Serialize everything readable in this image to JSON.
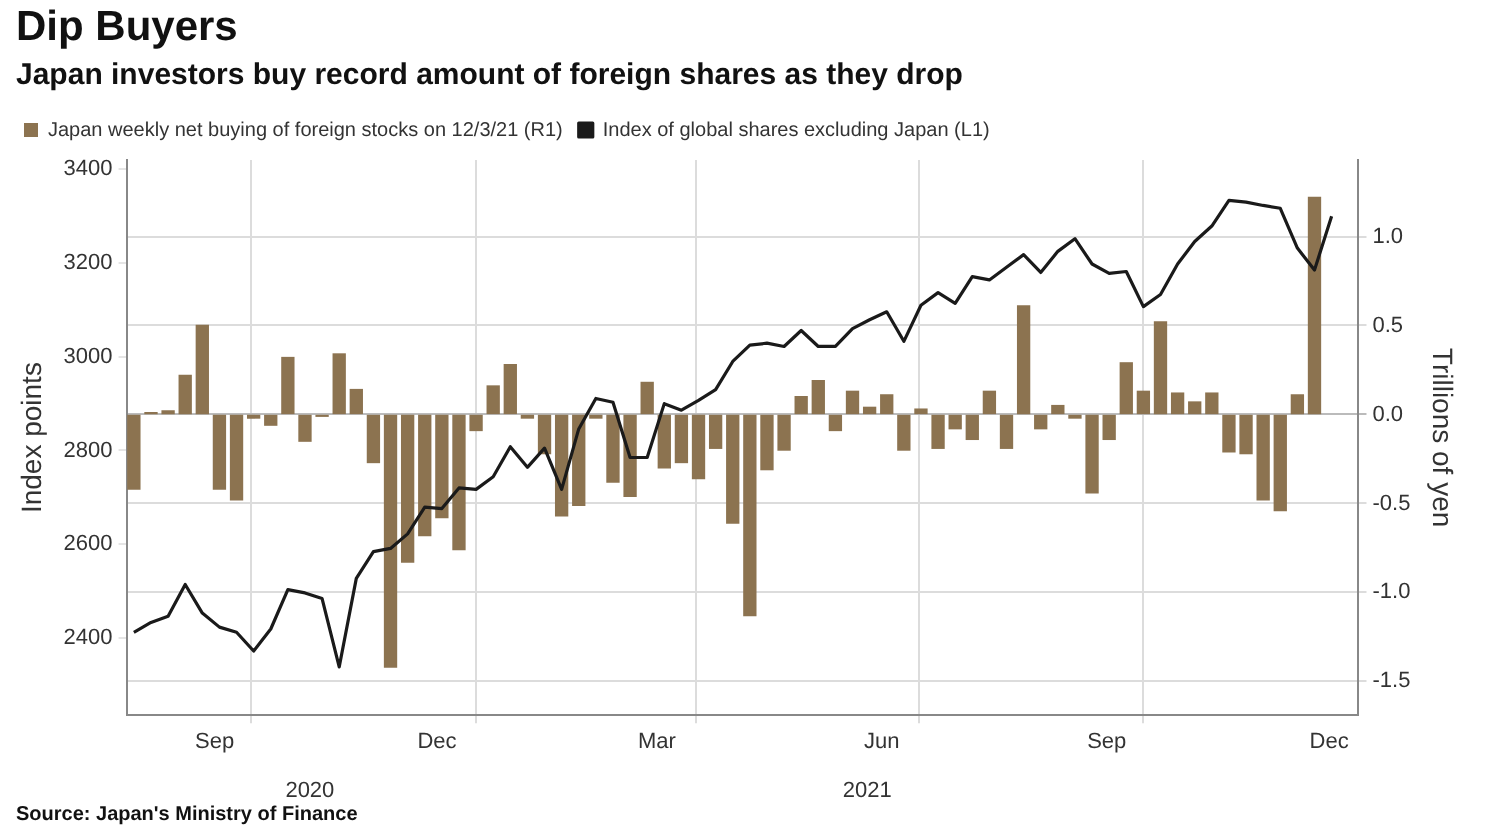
{
  "chart_data": {
    "type": "bar",
    "title": "Dip Buyers",
    "subtitle": "Japan investors buy record amount of foreign shares as they drop",
    "ylabel": "Index points",
    "y2label": "Trillions of yen",
    "annotations": [
      "Source: Japan's Ministry of Finance"
    ],
    "x": [
      "2020-08-14",
      "2020-08-21",
      "2020-08-28",
      "2020-09-04",
      "2020-09-11",
      "2020-09-18",
      "2020-09-25",
      "2020-10-02",
      "2020-10-09",
      "2020-10-16",
      "2020-10-23",
      "2020-10-30",
      "2020-11-06",
      "2020-11-13",
      "2020-11-20",
      "2020-11-27",
      "2020-12-04",
      "2020-12-11",
      "2020-12-18",
      "2020-12-25",
      "2021-01-01",
      "2021-01-08",
      "2021-01-15",
      "2021-01-22",
      "2021-01-29",
      "2021-02-05",
      "2021-02-12",
      "2021-02-19",
      "2021-02-26",
      "2021-03-05",
      "2021-03-12",
      "2021-03-19",
      "2021-03-26",
      "2021-04-02",
      "2021-04-09",
      "2021-04-16",
      "2021-04-23",
      "2021-04-30",
      "2021-05-07",
      "2021-05-14",
      "2021-05-21",
      "2021-05-28",
      "2021-06-04",
      "2021-06-11",
      "2021-06-18",
      "2021-06-25",
      "2021-07-02",
      "2021-07-09",
      "2021-07-16",
      "2021-07-23",
      "2021-07-30",
      "2021-08-06",
      "2021-08-13",
      "2021-08-20",
      "2021-08-27",
      "2021-09-03",
      "2021-09-10",
      "2021-09-17",
      "2021-09-24",
      "2021-10-01",
      "2021-10-08",
      "2021-10-15",
      "2021-10-22",
      "2021-10-29",
      "2021-11-05",
      "2021-11-12",
      "2021-11-19",
      "2021-11-26",
      "2021-12-03",
      "2021-12-10"
    ],
    "series": [
      {
        "name": "Japan weekly net buying of foreign stocks on 12/3/21 (R1)",
        "axis": "y2",
        "color": "#8c7350",
        "values": [
          -0.42,
          0.01,
          0.02,
          0.22,
          0.5,
          -0.42,
          -0.48,
          -0.02,
          -0.06,
          0.32,
          -0.15,
          -0.01,
          0.34,
          0.14,
          -0.27,
          -1.42,
          -0.83,
          -0.68,
          -0.58,
          -0.76,
          -0.09,
          0.16,
          0.28,
          -0.02,
          -0.22,
          -0.57,
          -0.51,
          -0.02,
          -0.38,
          -0.46,
          0.18,
          -0.3,
          -0.27,
          -0.36,
          -0.19,
          -0.61,
          -1.13,
          -0.31,
          -0.2,
          0.1,
          0.19,
          -0.09,
          0.13,
          0.04,
          0.11,
          -0.2,
          0.03,
          -0.19,
          -0.08,
          -0.14,
          0.13,
          -0.19,
          0.61,
          -0.08,
          0.05,
          -0.02,
          -0.44,
          -0.14,
          0.29,
          0.13,
          0.52,
          0.12,
          0.07,
          0.12,
          -0.21,
          -0.22,
          -0.48,
          -0.54,
          0.11,
          1.22
        ]
      },
      {
        "name": "Index of global shares excluding Japan (L1)",
        "type": "line",
        "color": "#1a1a1a",
        "x": [
          "2020-08-14",
          "2020-08-21",
          "2020-08-28",
          "2020-09-04",
          "2020-09-11",
          "2020-09-18",
          "2020-09-25",
          "2020-10-02",
          "2020-10-09",
          "2020-10-16",
          "2020-10-23",
          "2020-10-30",
          "2020-11-06",
          "2020-11-13",
          "2020-11-20",
          "2020-11-27",
          "2020-12-04",
          "2020-12-11",
          "2020-12-18",
          "2020-12-25",
          "2021-01-01",
          "2021-01-08",
          "2021-01-15",
          "2021-01-22",
          "2021-01-29",
          "2021-02-05",
          "2021-02-12",
          "2021-02-19",
          "2021-02-26",
          "2021-03-05",
          "2021-03-12",
          "2021-03-19",
          "2021-03-26",
          "2021-04-02",
          "2021-04-09",
          "2021-04-16",
          "2021-04-23",
          "2021-04-30",
          "2021-05-07",
          "2021-05-14",
          "2021-05-21",
          "2021-05-28",
          "2021-06-04",
          "2021-06-11",
          "2021-06-18",
          "2021-06-25",
          "2021-07-02",
          "2021-07-09",
          "2021-07-16",
          "2021-07-23",
          "2021-07-30",
          "2021-08-06",
          "2021-08-13",
          "2021-08-20",
          "2021-08-27",
          "2021-09-03",
          "2021-09-10",
          "2021-09-17",
          "2021-09-24",
          "2021-10-01",
          "2021-10-08",
          "2021-10-15",
          "2021-10-22",
          "2021-10-29",
          "2021-11-05",
          "2021-11-12",
          "2021-11-19",
          "2021-11-26",
          "2021-12-03",
          "2021-12-10",
          "2021-12-17"
        ],
        "values": [
          2412,
          2433,
          2446,
          2514,
          2453,
          2423,
          2412,
          2372,
          2419,
          2503,
          2496,
          2484,
          2338,
          2527,
          2584,
          2591,
          2622,
          2679,
          2676,
          2720,
          2717,
          2744,
          2808,
          2764,
          2805,
          2717,
          2846,
          2911,
          2903,
          2785,
          2785,
          2900,
          2886,
          2907,
          2930,
          2990,
          3025,
          3029,
          3022,
          3056,
          3022,
          3022,
          3060,
          3079,
          3096,
          3033,
          3110,
          3137,
          3114,
          3171,
          3164,
          3191,
          3218,
          3180,
          3225,
          3252,
          3198,
          3178,
          3182,
          3107,
          3133,
          3198,
          3246,
          3279,
          3334,
          3330,
          3323,
          3317,
          3232,
          3185,
          3300
        ]
      }
    ],
    "xlim": [
      "2020-08-11",
      "2021-12-28"
    ],
    "xticks": [
      {
        "value": "2020-09-16",
        "label": "Sep"
      },
      {
        "value": "2020-10-01",
        "label": null
      },
      {
        "value": "2020-12-16",
        "label": "Dec"
      },
      {
        "value": "2021-01-01",
        "label": null
      },
      {
        "value": "2021-03-16",
        "label": "Mar"
      },
      {
        "value": "2021-04-01",
        "label": null
      },
      {
        "value": "2021-06-16",
        "label": "Jun"
      },
      {
        "value": "2021-07-01",
        "label": null
      },
      {
        "value": "2021-09-16",
        "label": "Sep"
      },
      {
        "value": "2021-10-01",
        "label": null
      },
      {
        "value": "2021-12-16",
        "label": "Dec"
      }
    ],
    "x2lim": [
      "2020-08-11",
      "2021-12-28"
    ],
    "x2ticks": [
      {
        "value": "2020-10-25",
        "label": "2020"
      },
      {
        "value": "2021-06-10",
        "label": "2021"
      }
    ],
    "ylim": [
      2235,
      3420
    ],
    "yticks": [
      2400,
      2600,
      2800,
      3000,
      3200,
      3400
    ],
    "y2lim": [
      -1.69,
      1.43
    ],
    "y2ticks": [
      {
        "value": -1.5,
        "label": "-1.5"
      },
      {
        "value": -1,
        "label": "-1.0"
      },
      {
        "value": -0.5,
        "label": "-0.5"
      },
      {
        "value": 0,
        "label": "0.0"
      },
      {
        "value": 0.5,
        "label": "0.5"
      },
      {
        "value": 1,
        "label": "1.0"
      }
    ],
    "grid": true,
    "legend": "top left"
  }
}
